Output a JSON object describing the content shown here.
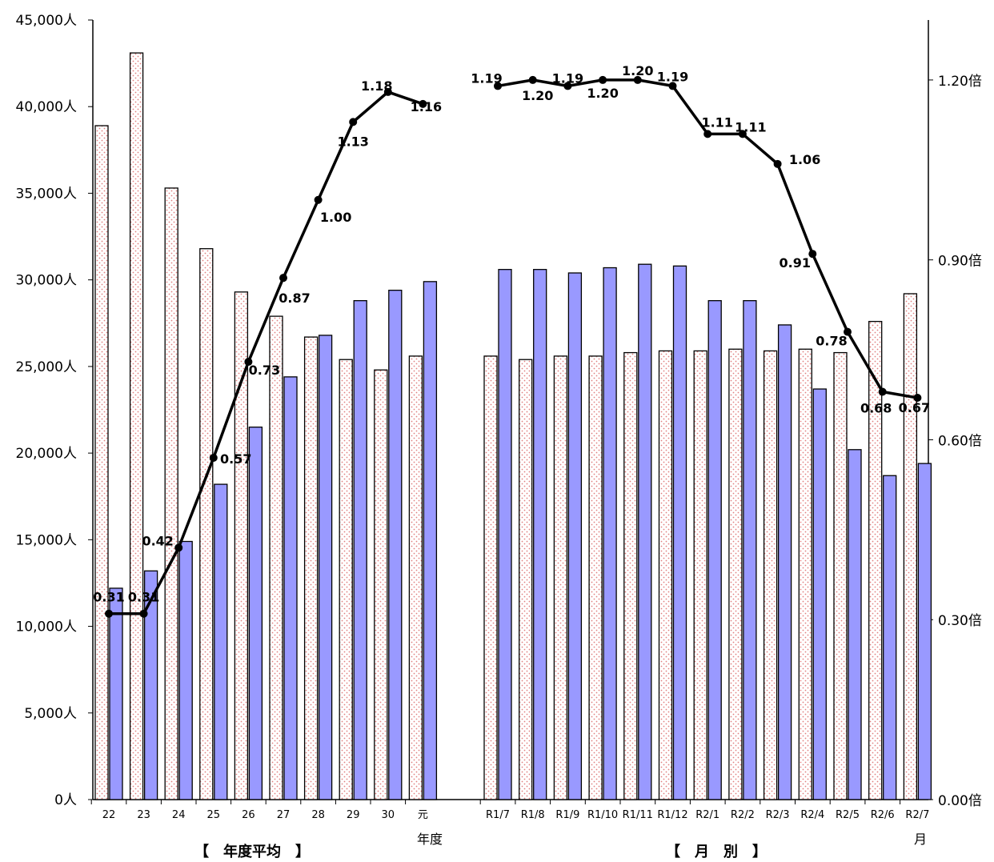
{
  "chart_data": {
    "type": "bar+line",
    "categories": [
      "22",
      "23",
      "24",
      "25",
      "26",
      "27",
      "28",
      "29",
      "30",
      "元",
      "R1/7",
      "R1/8",
      "R1/9",
      "R1/10",
      "R1/11",
      "R1/12",
      "R2/1",
      "R2/2",
      "R2/3",
      "R2/4",
      "R2/5",
      "R2/6",
      "R2/7"
    ],
    "series": [
      {
        "kind": "bar",
        "color": "#fff0f0",
        "pattern": "pink-dots",
        "values": [
          38900,
          43100,
          35300,
          31800,
          29300,
          27900,
          26700,
          25400,
          24800,
          25600,
          25600,
          25400,
          25600,
          25600,
          25800,
          25900,
          25900,
          26000,
          25900,
          26000,
          25800,
          27600,
          29200
        ]
      },
      {
        "kind": "bar",
        "color": "#9999ff",
        "values": [
          12200,
          13200,
          14900,
          18200,
          21500,
          24400,
          26800,
          28800,
          29400,
          29900,
          30600,
          30600,
          30400,
          30700,
          30900,
          30800,
          28800,
          28800,
          27400,
          23700,
          20200,
          18700,
          19400
        ]
      },
      {
        "kind": "line",
        "color": "#000000",
        "axis": "right",
        "values": [
          0.31,
          0.31,
          0.42,
          0.57,
          0.73,
          0.87,
          1.0,
          1.13,
          1.18,
          1.16,
          1.19,
          1.2,
          1.19,
          1.2,
          1.2,
          1.19,
          1.11,
          1.11,
          1.06,
          0.91,
          0.78,
          0.68,
          0.67
        ]
      }
    ],
    "line_labels": [
      "0.31",
      "0.31",
      "0.42",
      "0.57",
      "0.73",
      "0.87",
      "1.00",
      "1.13",
      "1.18",
      "1.16",
      "1.19",
      "1.20",
      "1.19",
      "1.20",
      "1.20",
      "1.19",
      "1.11",
      "1.11",
      "1.06",
      "0.91",
      "0.78",
      "0.68",
      "0.67"
    ],
    "left_axis": {
      "ylim": [
        0,
        45000
      ],
      "ticks": [
        "0人",
        "5,000人",
        "10,000人",
        "15,000人",
        "20,000人",
        "25,000人",
        "30,000人",
        "35,000人",
        "40,000人",
        "45,000人"
      ]
    },
    "right_axis": {
      "ylim": [
        0.0,
        1.3
      ],
      "ticks": [
        "0.00倍",
        "0.30倍",
        "0.60倍",
        "0.90倍",
        "1.20倍"
      ]
    },
    "group_labels": [
      "【　年度平均　】",
      "【　月　別　】"
    ],
    "axis_units": [
      "年度",
      "月"
    ],
    "grid": false,
    "legend": "none"
  }
}
